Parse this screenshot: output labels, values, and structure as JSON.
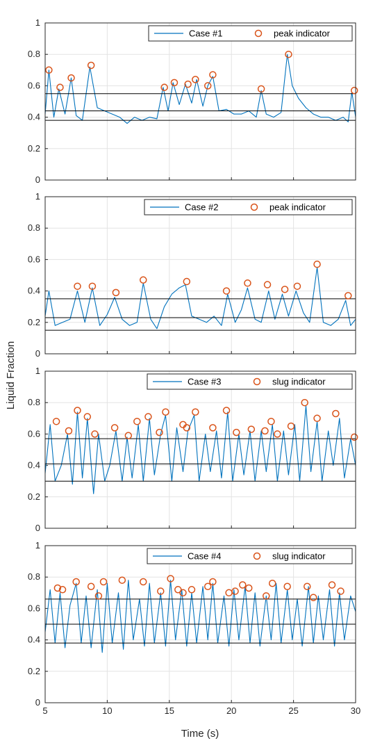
{
  "figure": {
    "ylabel": "Liquid Fraction",
    "xlabel": "Time (s)",
    "line_color": "#0072BD",
    "marker_color": "#D95319",
    "ref_line_color": "#000000"
  },
  "chart_data": [
    {
      "type": "line",
      "ylabel": "Liquid Fraction",
      "xlim": [
        5,
        30
      ],
      "ylim": [
        0,
        1
      ],
      "xticks": [
        "5",
        "10",
        "15",
        "20",
        "25",
        "30"
      ],
      "yticks": [
        "0",
        "0.2",
        "0.4",
        "0.6",
        "0.8",
        "1"
      ],
      "grid": true,
      "legend_position": "top-right",
      "series": [
        {
          "name": "Case #1",
          "kind": "line",
          "x": [
            5.0,
            5.3,
            5.7,
            6.1,
            6.6,
            7.1,
            7.5,
            8.0,
            8.6,
            9.2,
            9.8,
            10.4,
            11.0,
            11.6,
            12.2,
            12.8,
            13.4,
            14.0,
            14.5,
            14.9,
            15.3,
            15.8,
            16.3,
            16.8,
            17.2,
            17.7,
            18.1,
            18.5,
            19.0,
            19.6,
            20.2,
            20.8,
            21.4,
            22.0,
            22.4,
            22.8,
            23.4,
            24.0,
            24.5,
            24.9,
            25.4,
            26.0,
            26.6,
            27.2,
            27.8,
            28.4,
            29.0,
            29.4,
            29.7,
            30.0
          ],
          "values": [
            0.42,
            0.7,
            0.4,
            0.58,
            0.42,
            0.65,
            0.41,
            0.38,
            0.72,
            0.46,
            0.44,
            0.42,
            0.4,
            0.36,
            0.4,
            0.38,
            0.4,
            0.39,
            0.59,
            0.44,
            0.62,
            0.48,
            0.61,
            0.49,
            0.64,
            0.47,
            0.6,
            0.66,
            0.44,
            0.45,
            0.42,
            0.42,
            0.44,
            0.4,
            0.57,
            0.42,
            0.4,
            0.43,
            0.8,
            0.6,
            0.52,
            0.46,
            0.42,
            0.4,
            0.4,
            0.38,
            0.4,
            0.37,
            0.56,
            0.4
          ]
        },
        {
          "name": "peak indicator",
          "kind": "markers",
          "x": [
            5.3,
            6.2,
            7.1,
            8.7,
            14.6,
            15.4,
            16.5,
            17.1,
            18.1,
            18.5,
            22.4,
            24.6,
            29.9
          ],
          "values": [
            0.7,
            0.59,
            0.65,
            0.73,
            0.59,
            0.62,
            0.61,
            0.64,
            0.6,
            0.67,
            0.58,
            0.8,
            0.57
          ]
        }
      ],
      "reference_lines": [
        0.55,
        0.44,
        0.38
      ]
    },
    {
      "type": "line",
      "xlim": [
        5,
        30
      ],
      "ylim": [
        0,
        1
      ],
      "xticks": [
        "5",
        "10",
        "15",
        "20",
        "25",
        "30"
      ],
      "yticks": [
        "0",
        "0.2",
        "0.4",
        "0.6",
        "0.8",
        "1"
      ],
      "grid": true,
      "legend_position": "top-right",
      "series": [
        {
          "name": "Case #2",
          "kind": "line",
          "x": [
            5.0,
            5.3,
            5.8,
            6.4,
            7.0,
            7.6,
            8.2,
            8.8,
            9.4,
            10.0,
            10.6,
            11.2,
            11.8,
            12.4,
            12.9,
            13.5,
            14.0,
            14.6,
            15.2,
            15.8,
            16.3,
            16.8,
            17.4,
            18.0,
            18.6,
            19.2,
            19.7,
            20.3,
            20.8,
            21.3,
            21.9,
            22.4,
            23.0,
            23.5,
            24.1,
            24.6,
            25.2,
            25.8,
            26.3,
            26.9,
            27.4,
            28.0,
            28.6,
            29.2,
            29.6,
            30.0
          ],
          "values": [
            0.24,
            0.4,
            0.18,
            0.2,
            0.22,
            0.4,
            0.2,
            0.42,
            0.18,
            0.25,
            0.36,
            0.22,
            0.18,
            0.2,
            0.45,
            0.22,
            0.16,
            0.3,
            0.38,
            0.42,
            0.44,
            0.24,
            0.22,
            0.2,
            0.24,
            0.18,
            0.38,
            0.2,
            0.28,
            0.42,
            0.22,
            0.2,
            0.4,
            0.22,
            0.38,
            0.24,
            0.4,
            0.26,
            0.2,
            0.55,
            0.2,
            0.18,
            0.22,
            0.34,
            0.18,
            0.22
          ]
        },
        {
          "name": "peak indicator",
          "kind": "markers",
          "x": [
            7.6,
            8.8,
            10.7,
            12.9,
            16.4,
            19.6,
            21.3,
            22.9,
            24.3,
            25.3,
            26.9,
            29.4
          ],
          "values": [
            0.43,
            0.43,
            0.39,
            0.47,
            0.46,
            0.4,
            0.45,
            0.44,
            0.41,
            0.43,
            0.57,
            0.37
          ]
        }
      ],
      "reference_lines": [
        0.35,
        0.23,
        0.15
      ]
    },
    {
      "type": "line",
      "xlim": [
        5,
        30
      ],
      "ylim": [
        0,
        1
      ],
      "xticks": [
        "5",
        "10",
        "15",
        "20",
        "25",
        "30"
      ],
      "yticks": [
        "0",
        "0.2",
        "0.4",
        "0.6",
        "0.8",
        "1"
      ],
      "grid": true,
      "legend_position": "top-right",
      "series": [
        {
          "name": "Case #3",
          "kind": "line",
          "x": [
            5.0,
            5.4,
            5.8,
            6.3,
            6.8,
            7.2,
            7.6,
            8.0,
            8.4,
            8.9,
            9.3,
            9.8,
            10.2,
            10.7,
            11.2,
            11.6,
            12.0,
            12.5,
            12.9,
            13.4,
            13.8,
            14.3,
            14.7,
            15.2,
            15.6,
            16.1,
            16.5,
            17.0,
            17.4,
            17.9,
            18.3,
            18.8,
            19.2,
            19.7,
            20.1,
            20.6,
            21.0,
            21.5,
            21.9,
            22.4,
            22.8,
            23.3,
            23.7,
            24.2,
            24.6,
            25.1,
            25.5,
            26.0,
            26.4,
            26.9,
            27.3,
            27.8,
            28.2,
            28.7,
            29.1,
            29.6,
            30.0
          ],
          "values": [
            0.35,
            0.66,
            0.3,
            0.4,
            0.6,
            0.28,
            0.74,
            0.32,
            0.7,
            0.22,
            0.6,
            0.3,
            0.4,
            0.62,
            0.3,
            0.58,
            0.32,
            0.66,
            0.3,
            0.7,
            0.34,
            0.6,
            0.72,
            0.3,
            0.64,
            0.36,
            0.62,
            0.72,
            0.3,
            0.6,
            0.36,
            0.62,
            0.32,
            0.74,
            0.3,
            0.6,
            0.34,
            0.62,
            0.3,
            0.62,
            0.36,
            0.66,
            0.3,
            0.62,
            0.34,
            0.66,
            0.3,
            0.78,
            0.36,
            0.68,
            0.3,
            0.62,
            0.4,
            0.7,
            0.32,
            0.57,
            0.4
          ]
        },
        {
          "name": "slug indicator",
          "kind": "markers",
          "x": [
            5.9,
            6.9,
            7.6,
            8.4,
            9.0,
            10.6,
            11.7,
            12.4,
            13.3,
            14.2,
            14.7,
            16.1,
            16.4,
            17.1,
            18.5,
            19.6,
            20.4,
            21.6,
            22.7,
            23.2,
            23.7,
            24.8,
            25.9,
            26.9,
            28.4,
            29.9
          ],
          "values": [
            0.68,
            0.62,
            0.75,
            0.71,
            0.6,
            0.64,
            0.59,
            0.68,
            0.71,
            0.61,
            0.74,
            0.66,
            0.64,
            0.74,
            0.64,
            0.75,
            0.61,
            0.63,
            0.62,
            0.68,
            0.6,
            0.65,
            0.8,
            0.7,
            0.73,
            0.58
          ]
        }
      ],
      "reference_lines": [
        0.57,
        0.41,
        0.3
      ]
    },
    {
      "type": "line",
      "xlabel": "Time (s)",
      "xlim": [
        5,
        30
      ],
      "ylim": [
        0,
        1
      ],
      "xticks": [
        "5",
        "10",
        "15",
        "20",
        "25",
        "30"
      ],
      "yticks": [
        "0",
        "0.2",
        "0.4",
        "0.6",
        "0.8",
        "1"
      ],
      "grid": true,
      "legend_position": "top-right",
      "series": [
        {
          "name": "Case #4",
          "kind": "line",
          "x": [
            5.0,
            5.4,
            5.8,
            6.2,
            6.6,
            7.0,
            7.5,
            7.9,
            8.3,
            8.7,
            9.2,
            9.6,
            10.0,
            10.4,
            10.9,
            11.3,
            11.7,
            12.1,
            12.6,
            13.0,
            13.4,
            13.8,
            14.3,
            14.7,
            15.1,
            15.5,
            16.0,
            16.4,
            16.8,
            17.2,
            17.7,
            18.1,
            18.5,
            18.9,
            19.4,
            19.8,
            20.2,
            20.6,
            21.1,
            21.5,
            21.9,
            22.3,
            22.8,
            23.2,
            23.6,
            24.0,
            24.5,
            24.9,
            25.3,
            25.7,
            26.2,
            26.6,
            27.0,
            27.4,
            27.9,
            28.3,
            28.7,
            29.1,
            29.6,
            30.0
          ],
          "values": [
            0.45,
            0.72,
            0.38,
            0.7,
            0.35,
            0.62,
            0.76,
            0.38,
            0.68,
            0.35,
            0.72,
            0.32,
            0.76,
            0.38,
            0.7,
            0.34,
            0.78,
            0.4,
            0.66,
            0.36,
            0.76,
            0.38,
            0.7,
            0.36,
            0.78,
            0.4,
            0.72,
            0.36,
            0.7,
            0.38,
            0.74,
            0.4,
            0.76,
            0.38,
            0.68,
            0.36,
            0.72,
            0.4,
            0.74,
            0.38,
            0.7,
            0.36,
            0.68,
            0.4,
            0.76,
            0.38,
            0.72,
            0.4,
            0.66,
            0.36,
            0.74,
            0.38,
            0.68,
            0.4,
            0.72,
            0.36,
            0.7,
            0.4,
            0.68,
            0.58
          ]
        },
        {
          "name": "slug indicator",
          "kind": "markers",
          "x": [
            6.0,
            6.4,
            7.5,
            8.7,
            9.3,
            9.7,
            11.2,
            12.9,
            14.3,
            15.1,
            15.7,
            16.1,
            16.8,
            18.1,
            18.5,
            19.8,
            20.3,
            20.9,
            21.4,
            22.8,
            23.3,
            24.5,
            26.1,
            26.6,
            28.1,
            28.8
          ],
          "values": [
            0.73,
            0.72,
            0.77,
            0.74,
            0.68,
            0.77,
            0.78,
            0.77,
            0.71,
            0.79,
            0.72,
            0.7,
            0.72,
            0.74,
            0.77,
            0.7,
            0.71,
            0.75,
            0.73,
            0.68,
            0.76,
            0.74,
            0.74,
            0.67,
            0.75,
            0.71
          ]
        }
      ],
      "reference_lines": [
        0.66,
        0.5,
        0.38
      ]
    }
  ]
}
